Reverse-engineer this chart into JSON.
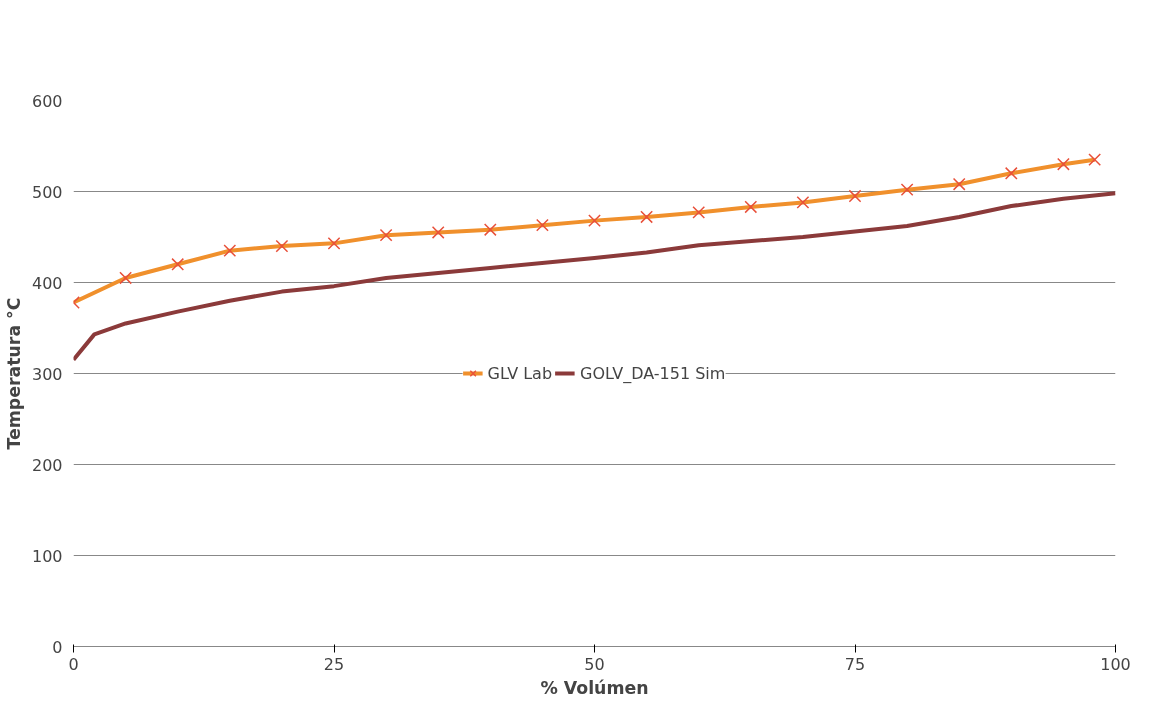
{
  "chart_data": {
    "type": "line",
    "xlabel": "% Volúmen",
    "ylabel": "Temperatura °C",
    "xlim": [
      0,
      100
    ],
    "xticks": [
      0,
      25,
      50,
      75,
      100
    ],
    "ylim": [
      0,
      600
    ],
    "yticks": [
      0,
      100,
      200,
      300,
      400,
      500,
      600
    ],
    "grid": "y",
    "legend": "center",
    "line_style": "solid",
    "series": [
      {
        "name": "GLV Lab",
        "color": "#f0902c",
        "marker": "cross",
        "x": [
          0,
          5,
          10,
          15,
          20,
          25,
          30,
          35,
          40,
          45,
          50,
          55,
          60,
          65,
          70,
          75,
          80,
          85,
          90,
          95,
          98
        ],
        "values": [
          378,
          405,
          420,
          435,
          440,
          443,
          452,
          455,
          458,
          463,
          468,
          472,
          477,
          483,
          488,
          495,
          502,
          508,
          520,
          530,
          535
        ]
      },
      {
        "name": "GOLV_DA-151 Sim",
        "color": "#8b3a3a",
        "marker": "none",
        "x": [
          0,
          2,
          5,
          10,
          15,
          20,
          25,
          30,
          40,
          50,
          55,
          60,
          70,
          80,
          85,
          90,
          95,
          100
        ],
        "values": [
          315,
          343,
          355,
          368,
          380,
          390,
          396,
          405,
          416,
          427,
          433,
          441,
          450,
          462,
          472,
          484,
          492,
          498
        ]
      }
    ]
  }
}
